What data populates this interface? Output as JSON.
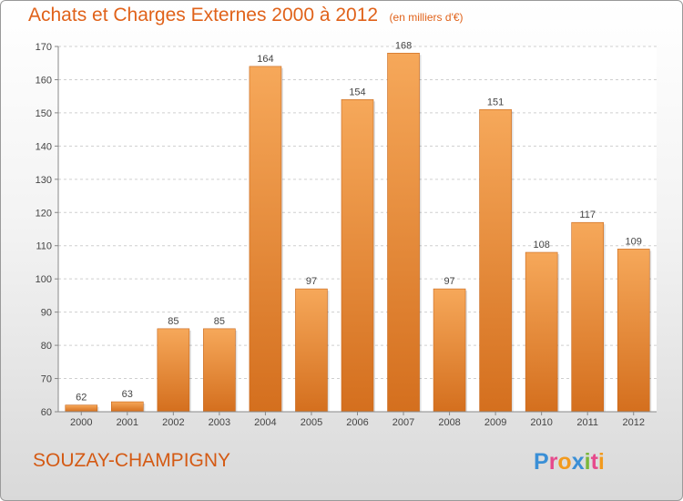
{
  "header": {
    "title": "Achats et Charges Externes 2000 à 2012",
    "unit": "(en milliers d'€)"
  },
  "footer": {
    "commune": "SOUZAY-CHAMPIGNY",
    "logo_letters": [
      {
        "char": "P",
        "color": "#3a8fd6"
      },
      {
        "char": "r",
        "color": "#e64a8c"
      },
      {
        "char": "o",
        "color": "#f29a1e"
      },
      {
        "char": "x",
        "color": "#3a8fd6"
      },
      {
        "char": "i",
        "color": "#7ab73a"
      },
      {
        "char": "t",
        "color": "#e64a8c"
      },
      {
        "char": "i",
        "color": "#f29a1e"
      }
    ]
  },
  "colors": {
    "accent": "#e0621a",
    "bar_top": "#f6a85a",
    "bar_bottom": "#d46f1e",
    "grid": "#cfcfcf"
  },
  "chart_data": {
    "type": "bar",
    "title": "Achats et Charges Externes 2000 à 2012",
    "subtitle": "(en milliers d'€)",
    "xlabel": "",
    "ylabel": "",
    "categories": [
      "2000",
      "2001",
      "2002",
      "2003",
      "2004",
      "2005",
      "2006",
      "2007",
      "2008",
      "2009",
      "2010",
      "2011",
      "2012"
    ],
    "values": [
      62,
      63,
      85,
      85,
      164,
      97,
      154,
      168,
      97,
      151,
      108,
      117,
      109
    ],
    "ylim": [
      60,
      170
    ],
    "yticks": [
      60,
      70,
      80,
      90,
      100,
      110,
      120,
      130,
      140,
      150,
      160,
      170
    ],
    "grid": "horizontal dashed",
    "legend": "none"
  }
}
